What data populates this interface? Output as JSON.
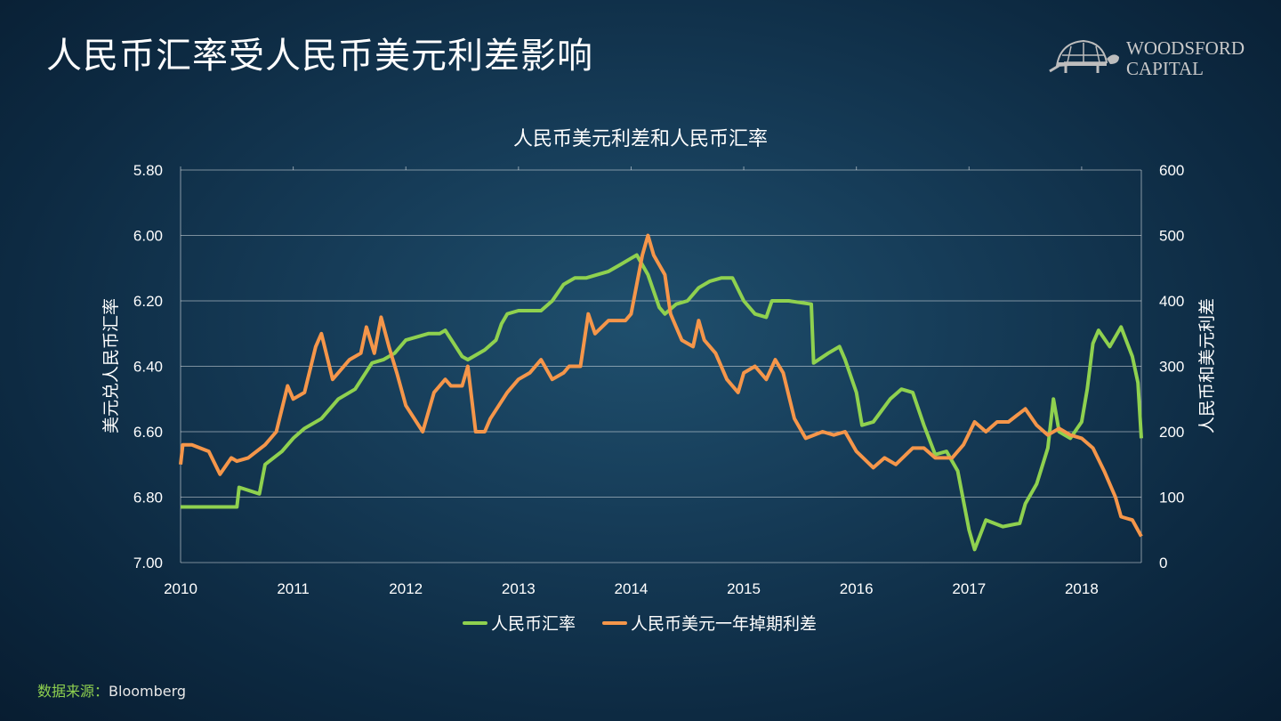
{
  "page_title": "人民币汇率受人民币美元利差影响",
  "logo": {
    "line1": "WOODSFORD",
    "line2": "CAPITAL"
  },
  "source": {
    "label": "数据来源：",
    "value": "Bloomberg"
  },
  "chart_data": {
    "type": "line",
    "title": "人民币美元利差和人民币汇率",
    "x_ticks": [
      "2010",
      "2011",
      "2012",
      "2013",
      "2014",
      "2015",
      "2016",
      "2017",
      "2018"
    ],
    "xlim": [
      2010,
      2018.53
    ],
    "y_left": {
      "label": "美元兑人民币汇率",
      "lim": [
        5.8,
        7.0
      ],
      "inverted": true,
      "ticks": [
        "5.80",
        "6.00",
        "6.20",
        "6.40",
        "6.60",
        "6.80",
        "7.00"
      ]
    },
    "y_right": {
      "label": "人民币和美元利差",
      "lim": [
        0,
        600
      ],
      "ticks": [
        "600",
        "500",
        "400",
        "300",
        "200",
        "100",
        "0"
      ]
    },
    "grid": true,
    "legend_position": "bottom",
    "series": [
      {
        "name": "人民币汇率",
        "axis": "left",
        "color": "#8fd14f",
        "x": [
          2010.0,
          2010.5,
          2010.52,
          2010.7,
          2010.75,
          2010.9,
          2011.0,
          2011.1,
          2011.25,
          2011.4,
          2011.55,
          2011.7,
          2011.8,
          2011.9,
          2012.0,
          2012.1,
          2012.2,
          2012.3,
          2012.35,
          2012.5,
          2012.55,
          2012.7,
          2012.8,
          2012.85,
          2012.9,
          2013.0,
          2013.2,
          2013.3,
          2013.4,
          2013.5,
          2013.6,
          2013.7,
          2013.8,
          2013.9,
          2014.0,
          2014.05,
          2014.15,
          2014.25,
          2014.3,
          2014.4,
          2014.5,
          2014.6,
          2014.7,
          2014.8,
          2014.9,
          2015.0,
          2015.1,
          2015.2,
          2015.25,
          2015.4,
          2015.6,
          2015.62,
          2015.75,
          2015.85,
          2015.9,
          2016.0,
          2016.05,
          2016.15,
          2016.3,
          2016.4,
          2016.5,
          2016.6,
          2016.7,
          2016.8,
          2016.9,
          2017.0,
          2017.05,
          2017.15,
          2017.3,
          2017.45,
          2017.5,
          2017.6,
          2017.7,
          2017.75,
          2017.8,
          2017.9,
          2018.0,
          2018.05,
          2018.1,
          2018.15,
          2018.25,
          2018.35,
          2018.45,
          2018.5,
          2018.53
        ],
        "y": [
          6.83,
          6.83,
          6.77,
          6.79,
          6.7,
          6.66,
          6.62,
          6.59,
          6.56,
          6.5,
          6.47,
          6.39,
          6.38,
          6.36,
          6.32,
          6.31,
          6.3,
          6.3,
          6.29,
          6.37,
          6.38,
          6.35,
          6.32,
          6.27,
          6.24,
          6.23,
          6.23,
          6.2,
          6.15,
          6.13,
          6.13,
          6.12,
          6.11,
          6.09,
          6.07,
          6.06,
          6.12,
          6.22,
          6.24,
          6.21,
          6.2,
          6.16,
          6.14,
          6.13,
          6.13,
          6.2,
          6.24,
          6.25,
          6.2,
          6.2,
          6.21,
          6.39,
          6.36,
          6.34,
          6.38,
          6.48,
          6.58,
          6.57,
          6.5,
          6.47,
          6.48,
          6.58,
          6.67,
          6.66,
          6.72,
          6.9,
          6.96,
          6.87,
          6.89,
          6.88,
          6.82,
          6.76,
          6.65,
          6.5,
          6.6,
          6.62,
          6.57,
          6.47,
          6.33,
          6.29,
          6.34,
          6.28,
          6.37,
          6.45,
          6.62
        ]
      },
      {
        "name": "人民币美元一年掉期利差",
        "axis": "right",
        "color": "#f5964a",
        "x": [
          2010.0,
          2010.02,
          2010.1,
          2010.25,
          2010.35,
          2010.45,
          2010.5,
          2010.6,
          2010.75,
          2010.85,
          2010.95,
          2011.0,
          2011.1,
          2011.2,
          2011.25,
          2011.35,
          2011.5,
          2011.6,
          2011.65,
          2011.72,
          2011.78,
          2011.85,
          2011.92,
          2012.0,
          2012.15,
          2012.25,
          2012.35,
          2012.4,
          2012.5,
          2012.55,
          2012.62,
          2012.7,
          2012.75,
          2012.9,
          2013.0,
          2013.1,
          2013.2,
          2013.3,
          2013.4,
          2013.45,
          2013.55,
          2013.62,
          2013.68,
          2013.8,
          2013.95,
          2014.0,
          2014.1,
          2014.15,
          2014.2,
          2014.3,
          2014.35,
          2014.45,
          2014.55,
          2014.6,
          2014.65,
          2014.75,
          2014.85,
          2014.95,
          2015.0,
          2015.1,
          2015.2,
          2015.28,
          2015.35,
          2015.45,
          2015.55,
          2015.7,
          2015.8,
          2015.9,
          2016.0,
          2016.15,
          2016.25,
          2016.35,
          2016.5,
          2016.6,
          2016.7,
          2016.85,
          2016.95,
          2017.05,
          2017.15,
          2017.25,
          2017.35,
          2017.5,
          2017.6,
          2017.7,
          2017.8,
          2017.9,
          2018.0,
          2018.1,
          2018.2,
          2018.3,
          2018.35,
          2018.45,
          2018.53
        ],
        "y": [
          150,
          180,
          180,
          170,
          135,
          160,
          155,
          160,
          180,
          200,
          270,
          250,
          260,
          330,
          350,
          280,
          310,
          320,
          360,
          320,
          375,
          330,
          290,
          240,
          200,
          260,
          280,
          270,
          270,
          300,
          200,
          200,
          220,
          260,
          280,
          290,
          310,
          280,
          290,
          300,
          300,
          380,
          350,
          370,
          370,
          380,
          470,
          500,
          470,
          440,
          380,
          340,
          330,
          370,
          340,
          320,
          280,
          260,
          290,
          300,
          280,
          310,
          290,
          220,
          190,
          200,
          195,
          200,
          170,
          145,
          160,
          150,
          175,
          175,
          160,
          160,
          180,
          215,
          200,
          215,
          215,
          235,
          210,
          195,
          205,
          195,
          190,
          175,
          140,
          100,
          70,
          65,
          40
        ]
      }
    ]
  }
}
